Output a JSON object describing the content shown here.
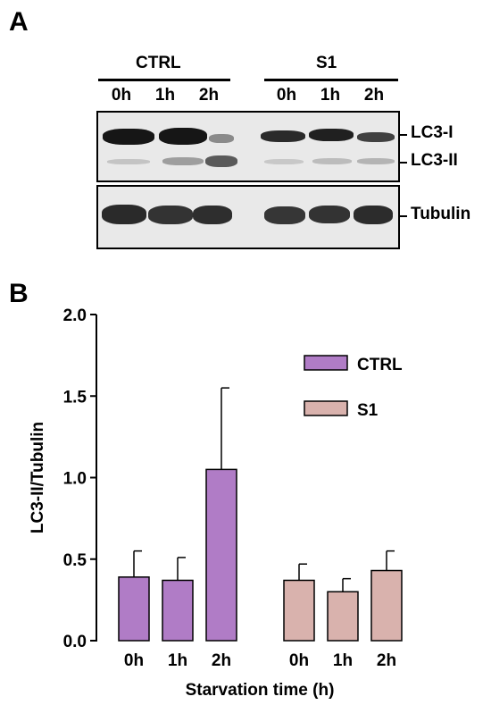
{
  "panel_a": {
    "letter": "A",
    "groups": [
      "CTRL",
      "S1"
    ],
    "lanes": [
      "0h",
      "1h",
      "2h",
      "0h",
      "1h",
      "2h"
    ],
    "bands": [
      "LC3-I",
      "LC3-II",
      "Tubulin"
    ]
  },
  "panel_b": {
    "letter": "B"
  },
  "chart_data": {
    "type": "bar",
    "xlabel": "Starvation time (h)",
    "ylabel": "LC3-II/Tubulin",
    "ylim": [
      0,
      2.0
    ],
    "yticks": [
      "0.0",
      "0.5",
      "1.0",
      "1.5",
      "2.0"
    ],
    "categories": [
      "0h",
      "1h",
      "2h"
    ],
    "legend_position": "top-right",
    "series": [
      {
        "name": "CTRL",
        "color": "#b07cc6",
        "values": [
          0.39,
          0.37,
          1.05
        ],
        "errors": [
          0.16,
          0.14,
          0.5
        ]
      },
      {
        "name": "S1",
        "color": "#d9b2ad",
        "values": [
          0.37,
          0.3,
          0.43
        ],
        "errors": [
          0.1,
          0.08,
          0.12
        ]
      }
    ]
  }
}
